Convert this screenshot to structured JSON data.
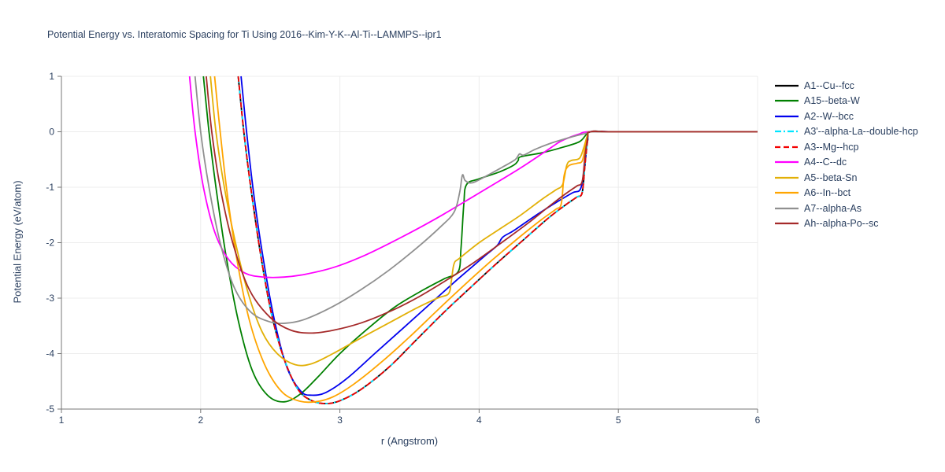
{
  "chart_data": {
    "type": "line",
    "title": "Potential Energy vs. Interatomic Spacing for Ti Using 2016--Kim-Y-K--Al-Ti--LAMMPS--ipr1",
    "xlabel": "r (Angstrom)",
    "ylabel": "Potential Energy (eV/atom)",
    "xlim": [
      1,
      6
    ],
    "ylim": [
      -5,
      1
    ],
    "x_ticks": [
      1,
      2,
      3,
      4,
      5,
      6
    ],
    "y_ticks": [
      1,
      0,
      -1,
      -2,
      -3,
      -4,
      -5
    ],
    "grid": true,
    "legend_position": "right",
    "grid_color": "#ececec",
    "axis_color": "#777777",
    "text_color": "#2a3f5f",
    "series": [
      {
        "name": "A1--Cu--fcc",
        "color": "#000000",
        "dash": "solid",
        "points": [
          [
            2.27,
            1
          ],
          [
            2.31,
            0
          ],
          [
            2.36,
            -1
          ],
          [
            2.43,
            -2.2
          ],
          [
            2.51,
            -3.3
          ],
          [
            2.6,
            -4.1
          ],
          [
            2.7,
            -4.65
          ],
          [
            2.8,
            -4.85
          ],
          [
            2.9,
            -4.9
          ],
          [
            3.0,
            -4.85
          ],
          [
            3.15,
            -4.65
          ],
          [
            3.35,
            -4.25
          ],
          [
            3.55,
            -3.75
          ],
          [
            3.75,
            -3.25
          ],
          [
            3.95,
            -2.78
          ],
          [
            4.15,
            -2.32
          ],
          [
            4.35,
            -1.88
          ],
          [
            4.5,
            -1.55
          ],
          [
            4.62,
            -1.32
          ],
          [
            4.7,
            -1.18
          ],
          [
            4.74,
            -1.1
          ],
          [
            4.76,
            -0.6
          ],
          [
            4.78,
            -0.15
          ],
          [
            4.8,
            0
          ],
          [
            5.0,
            0
          ],
          [
            6.0,
            0
          ]
        ]
      },
      {
        "name": "A15--beta-W",
        "color": "#008000",
        "dash": "solid",
        "points": [
          [
            2.02,
            1
          ],
          [
            2.06,
            0
          ],
          [
            2.11,
            -1
          ],
          [
            2.18,
            -2.2
          ],
          [
            2.27,
            -3.4
          ],
          [
            2.37,
            -4.3
          ],
          [
            2.48,
            -4.75
          ],
          [
            2.6,
            -4.87
          ],
          [
            2.72,
            -4.72
          ],
          [
            2.85,
            -4.4
          ],
          [
            3.0,
            -4.0
          ],
          [
            3.2,
            -3.55
          ],
          [
            3.4,
            -3.15
          ],
          [
            3.6,
            -2.85
          ],
          [
            3.75,
            -2.65
          ],
          [
            3.85,
            -2.52
          ],
          [
            3.87,
            -2.1
          ],
          [
            3.89,
            -1.3
          ],
          [
            3.91,
            -0.95
          ],
          [
            4.0,
            -0.85
          ],
          [
            4.15,
            -0.72
          ],
          [
            4.25,
            -0.6
          ],
          [
            4.28,
            -0.52
          ],
          [
            4.3,
            -0.45
          ],
          [
            4.45,
            -0.38
          ],
          [
            4.6,
            -0.28
          ],
          [
            4.72,
            -0.18
          ],
          [
            4.77,
            -0.05
          ],
          [
            4.8,
            0
          ],
          [
            5.0,
            0
          ],
          [
            6.0,
            0
          ]
        ]
      },
      {
        "name": "A2--W--bcc",
        "color": "#0000ee",
        "dash": "solid",
        "points": [
          [
            2.29,
            1
          ],
          [
            2.33,
            0
          ],
          [
            2.38,
            -1.1
          ],
          [
            2.45,
            -2.3
          ],
          [
            2.53,
            -3.4
          ],
          [
            2.62,
            -4.25
          ],
          [
            2.72,
            -4.68
          ],
          [
            2.8,
            -4.75
          ],
          [
            2.9,
            -4.7
          ],
          [
            3.05,
            -4.45
          ],
          [
            3.25,
            -4.0
          ],
          [
            3.45,
            -3.55
          ],
          [
            3.65,
            -3.1
          ],
          [
            3.85,
            -2.65
          ],
          [
            4.05,
            -2.22
          ],
          [
            4.13,
            -2.05
          ],
          [
            4.17,
            -1.9
          ],
          [
            4.25,
            -1.78
          ],
          [
            4.4,
            -1.52
          ],
          [
            4.55,
            -1.28
          ],
          [
            4.67,
            -1.1
          ],
          [
            4.73,
            -1.02
          ],
          [
            4.76,
            -0.55
          ],
          [
            4.78,
            -0.12
          ],
          [
            4.8,
            0
          ],
          [
            5.0,
            0
          ],
          [
            6.0,
            0
          ]
        ]
      },
      {
        "name": "A3'--alpha-La--double-hcp",
        "color": "#00e5ff",
        "dash": "dashdot",
        "points": [
          [
            2.27,
            1
          ],
          [
            2.31,
            0
          ],
          [
            2.36,
            -1
          ],
          [
            2.43,
            -2.2
          ],
          [
            2.51,
            -3.3
          ],
          [
            2.6,
            -4.1
          ],
          [
            2.7,
            -4.65
          ],
          [
            2.8,
            -4.85
          ],
          [
            2.9,
            -4.9
          ],
          [
            3.0,
            -4.85
          ],
          [
            3.15,
            -4.65
          ],
          [
            3.35,
            -4.25
          ],
          [
            3.55,
            -3.75
          ],
          [
            3.75,
            -3.25
          ],
          [
            3.95,
            -2.78
          ],
          [
            4.15,
            -2.32
          ],
          [
            4.35,
            -1.88
          ],
          [
            4.5,
            -1.55
          ],
          [
            4.62,
            -1.32
          ],
          [
            4.7,
            -1.18
          ],
          [
            4.74,
            -1.1
          ],
          [
            4.76,
            -0.6
          ],
          [
            4.78,
            -0.15
          ],
          [
            4.8,
            0
          ],
          [
            5.0,
            0
          ],
          [
            6.0,
            0
          ]
        ]
      },
      {
        "name": "A3--Mg--hcp",
        "color": "#f40000",
        "dash": "dash",
        "points": [
          [
            2.27,
            1
          ],
          [
            2.31,
            0
          ],
          [
            2.36,
            -1
          ],
          [
            2.43,
            -2.2
          ],
          [
            2.51,
            -3.3
          ],
          [
            2.6,
            -4.1
          ],
          [
            2.7,
            -4.65
          ],
          [
            2.8,
            -4.85
          ],
          [
            2.9,
            -4.9
          ],
          [
            3.0,
            -4.85
          ],
          [
            3.15,
            -4.65
          ],
          [
            3.35,
            -4.25
          ],
          [
            3.55,
            -3.75
          ],
          [
            3.75,
            -3.25
          ],
          [
            3.95,
            -2.78
          ],
          [
            4.15,
            -2.32
          ],
          [
            4.35,
            -1.88
          ],
          [
            4.5,
            -1.55
          ],
          [
            4.62,
            -1.32
          ],
          [
            4.7,
            -1.18
          ],
          [
            4.74,
            -1.1
          ],
          [
            4.76,
            -0.6
          ],
          [
            4.78,
            -0.15
          ],
          [
            4.8,
            0
          ],
          [
            5.0,
            0
          ],
          [
            6.0,
            0
          ]
        ]
      },
      {
        "name": "A4--C--dc",
        "color": "#ff00ff",
        "dash": "solid",
        "points": [
          [
            1.92,
            1
          ],
          [
            1.96,
            0
          ],
          [
            2.02,
            -1.0
          ],
          [
            2.1,
            -1.8
          ],
          [
            2.2,
            -2.3
          ],
          [
            2.32,
            -2.55
          ],
          [
            2.45,
            -2.62
          ],
          [
            2.6,
            -2.62
          ],
          [
            2.75,
            -2.57
          ],
          [
            2.95,
            -2.45
          ],
          [
            3.15,
            -2.26
          ],
          [
            3.35,
            -2.02
          ],
          [
            3.55,
            -1.76
          ],
          [
            3.75,
            -1.48
          ],
          [
            3.95,
            -1.18
          ],
          [
            4.15,
            -0.88
          ],
          [
            4.3,
            -0.65
          ],
          [
            4.42,
            -0.45
          ],
          [
            4.52,
            -0.28
          ],
          [
            4.58,
            -0.18
          ],
          [
            4.65,
            -0.1
          ],
          [
            4.72,
            -0.04
          ],
          [
            4.78,
            0
          ],
          [
            5.0,
            0
          ],
          [
            6.0,
            0
          ]
        ]
      },
      {
        "name": "A5--beta-Sn",
        "color": "#e2b007",
        "dash": "solid",
        "points": [
          [
            2.07,
            1
          ],
          [
            2.11,
            0
          ],
          [
            2.17,
            -1.0
          ],
          [
            2.25,
            -2.0
          ],
          [
            2.34,
            -2.9
          ],
          [
            2.44,
            -3.6
          ],
          [
            2.55,
            -4.0
          ],
          [
            2.68,
            -4.2
          ],
          [
            2.8,
            -4.18
          ],
          [
            2.95,
            -4.0
          ],
          [
            3.15,
            -3.72
          ],
          [
            3.35,
            -3.45
          ],
          [
            3.55,
            -3.18
          ],
          [
            3.7,
            -3.0
          ],
          [
            3.78,
            -2.92
          ],
          [
            3.8,
            -2.7
          ],
          [
            3.82,
            -2.38
          ],
          [
            3.86,
            -2.28
          ],
          [
            4.0,
            -2.0
          ],
          [
            4.15,
            -1.75
          ],
          [
            4.3,
            -1.5
          ],
          [
            4.45,
            -1.22
          ],
          [
            4.55,
            -1.05
          ],
          [
            4.6,
            -0.95
          ],
          [
            4.63,
            -0.6
          ],
          [
            4.66,
            -0.52
          ],
          [
            4.72,
            -0.48
          ],
          [
            4.75,
            -0.3
          ],
          [
            4.78,
            -0.05
          ],
          [
            4.8,
            0
          ],
          [
            5.0,
            0
          ],
          [
            6.0,
            0
          ]
        ]
      },
      {
        "name": "A6--In--bct",
        "color": "#ffa500",
        "dash": "solid",
        "points": [
          [
            2.1,
            1
          ],
          [
            2.14,
            0
          ],
          [
            2.19,
            -1.1
          ],
          [
            2.26,
            -2.3
          ],
          [
            2.35,
            -3.4
          ],
          [
            2.46,
            -4.2
          ],
          [
            2.58,
            -4.68
          ],
          [
            2.7,
            -4.85
          ],
          [
            2.82,
            -4.87
          ],
          [
            2.95,
            -4.78
          ],
          [
            3.1,
            -4.55
          ],
          [
            3.3,
            -4.15
          ],
          [
            3.5,
            -3.7
          ],
          [
            3.7,
            -3.22
          ],
          [
            3.9,
            -2.75
          ],
          [
            4.1,
            -2.3
          ],
          [
            4.3,
            -1.88
          ],
          [
            4.45,
            -1.58
          ],
          [
            4.55,
            -1.4
          ],
          [
            4.59,
            -1.3
          ],
          [
            4.61,
            -0.8
          ],
          [
            4.64,
            -0.62
          ],
          [
            4.7,
            -0.57
          ],
          [
            4.74,
            -0.53
          ],
          [
            4.76,
            -0.3
          ],
          [
            4.78,
            -0.08
          ],
          [
            4.8,
            0
          ],
          [
            5.0,
            0
          ],
          [
            6.0,
            0
          ]
        ]
      },
      {
        "name": "A7--alpha-As",
        "color": "#909090",
        "dash": "solid",
        "points": [
          [
            1.96,
            1
          ],
          [
            2.0,
            0
          ],
          [
            2.06,
            -1.0
          ],
          [
            2.14,
            -2.0
          ],
          [
            2.24,
            -2.8
          ],
          [
            2.36,
            -3.25
          ],
          [
            2.5,
            -3.43
          ],
          [
            2.62,
            -3.45
          ],
          [
            2.75,
            -3.38
          ],
          [
            2.95,
            -3.15
          ],
          [
            3.15,
            -2.85
          ],
          [
            3.35,
            -2.5
          ],
          [
            3.55,
            -2.1
          ],
          [
            3.72,
            -1.72
          ],
          [
            3.82,
            -1.45
          ],
          [
            3.86,
            -1.1
          ],
          [
            3.88,
            -0.78
          ],
          [
            3.9,
            -0.88
          ],
          [
            3.95,
            -0.92
          ],
          [
            4.05,
            -0.8
          ],
          [
            4.18,
            -0.62
          ],
          [
            4.26,
            -0.5
          ],
          [
            4.29,
            -0.4
          ],
          [
            4.32,
            -0.42
          ],
          [
            4.4,
            -0.32
          ],
          [
            4.5,
            -0.22
          ],
          [
            4.6,
            -0.14
          ],
          [
            4.7,
            -0.07
          ],
          [
            4.78,
            -0.02
          ],
          [
            4.8,
            0
          ],
          [
            5.0,
            0
          ],
          [
            6.0,
            0
          ]
        ]
      },
      {
        "name": "Ah--alpha-Po--sc",
        "color": "#a52a2a",
        "dash": "solid",
        "points": [
          [
            2.04,
            1
          ],
          [
            2.08,
            0
          ],
          [
            2.14,
            -1.0
          ],
          [
            2.23,
            -2.0
          ],
          [
            2.35,
            -2.85
          ],
          [
            2.5,
            -3.35
          ],
          [
            2.65,
            -3.58
          ],
          [
            2.8,
            -3.63
          ],
          [
            2.95,
            -3.58
          ],
          [
            3.15,
            -3.45
          ],
          [
            3.35,
            -3.25
          ],
          [
            3.55,
            -3.0
          ],
          [
            3.75,
            -2.7
          ],
          [
            3.95,
            -2.38
          ],
          [
            4.15,
            -2.02
          ],
          [
            4.35,
            -1.65
          ],
          [
            4.5,
            -1.35
          ],
          [
            4.62,
            -1.12
          ],
          [
            4.7,
            -0.98
          ],
          [
            4.74,
            -0.9
          ],
          [
            4.76,
            -0.45
          ],
          [
            4.78,
            -0.1
          ],
          [
            4.8,
            0
          ],
          [
            5.0,
            0
          ],
          [
            6.0,
            0
          ]
        ]
      }
    ]
  }
}
